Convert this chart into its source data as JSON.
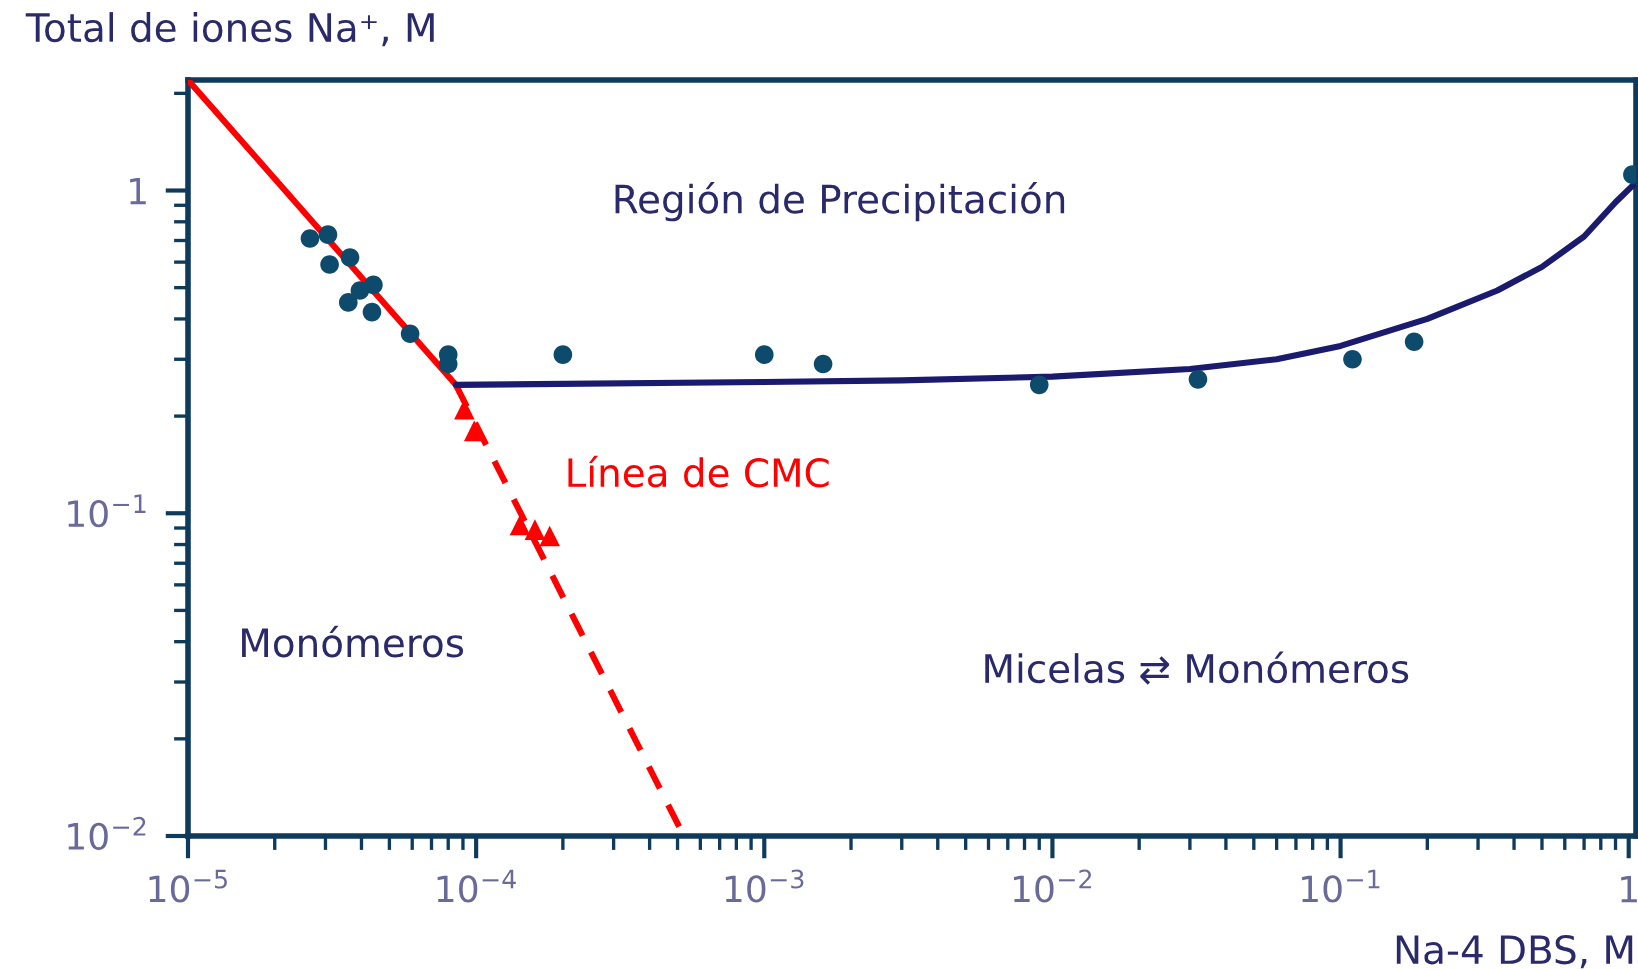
{
  "chart_data": {
    "type": "scatter",
    "xlabel": "Na-4 DBS, M",
    "ylabel": "Total de iones Na⁺, M",
    "log": "xy",
    "grid": false,
    "legend": false,
    "xlim": [
      1e-05,
      1.06
    ],
    "ylim": [
      0.01,
      2.2
    ],
    "xticks": [
      {
        "value": 1e-05,
        "label": "10$^{−5}$"
      },
      {
        "value": 0.0001,
        "label": "10$^{−4}$"
      },
      {
        "value": 0.001,
        "label": "10$^{−3}$"
      },
      {
        "value": 0.01,
        "label": "10$^{−2}$"
      },
      {
        "value": 0.1,
        "label": "10$^{−1}$"
      },
      {
        "value": 1,
        "label": "1"
      }
    ],
    "yticks": [
      {
        "value": 0.01,
        "label": "10$^{−2}$"
      },
      {
        "value": 0.1,
        "label": "10$^{−1}$"
      },
      {
        "value": 1,
        "label": "1"
      }
    ],
    "series": [
      {
        "marker": "circle",
        "color": "#0e4a6c",
        "x": [
          2.65e-05,
          3.06e-05,
          3.1e-05,
          3.65e-05,
          3.6e-05,
          3.95e-05,
          4.4e-05,
          4.35e-05,
          5.9e-05,
          8e-05,
          8e-05,
          0.0002,
          0.001,
          0.0016,
          0.009,
          0.032,
          0.11,
          0.18,
          1.03
        ],
        "values": [
          0.71,
          0.73,
          0.59,
          0.62,
          0.45,
          0.49,
          0.51,
          0.42,
          0.36,
          0.31,
          0.29,
          0.31,
          0.31,
          0.29,
          0.25,
          0.26,
          0.3,
          0.34,
          1.12
        ]
      },
      {
        "marker": "triangle",
        "color": "#ff0000",
        "x": [
          9.1e-05,
          9.85e-05,
          0.000142,
          0.00016,
          0.00018
        ],
        "values": [
          0.21,
          0.18,
          0.092,
          0.089,
          0.085
        ]
      },
      {
        "type": "line",
        "marker": "none",
        "line_style": "solid",
        "color": "#ff0000",
        "x": [
          1e-05,
          8.5e-05
        ],
        "values": [
          2.2,
          0.25
        ]
      },
      {
        "type": "line",
        "marker": "none",
        "line_style": "dashed",
        "color": "#ff0000",
        "x": [
          8.5e-05,
          0.000526
        ],
        "values": [
          0.25,
          0.01
        ]
      },
      {
        "type": "line",
        "marker": "none",
        "line_style": "solid",
        "color": "#1a1a6e",
        "x": [
          8.5e-05,
          0.001,
          0.003,
          0.01,
          0.03,
          0.06,
          0.1,
          0.2,
          0.35,
          0.5,
          0.7,
          0.9,
          1.06
        ],
        "values": [
          0.25,
          0.255,
          0.258,
          0.265,
          0.28,
          0.3,
          0.33,
          0.4,
          0.49,
          0.58,
          0.72,
          0.92,
          1.06
        ]
      }
    ],
    "annotations": [
      "Región de Precipitación",
      "Línea de CMC",
      "Monómeros",
      "Micelas ⇄ Monómeros"
    ]
  }
}
